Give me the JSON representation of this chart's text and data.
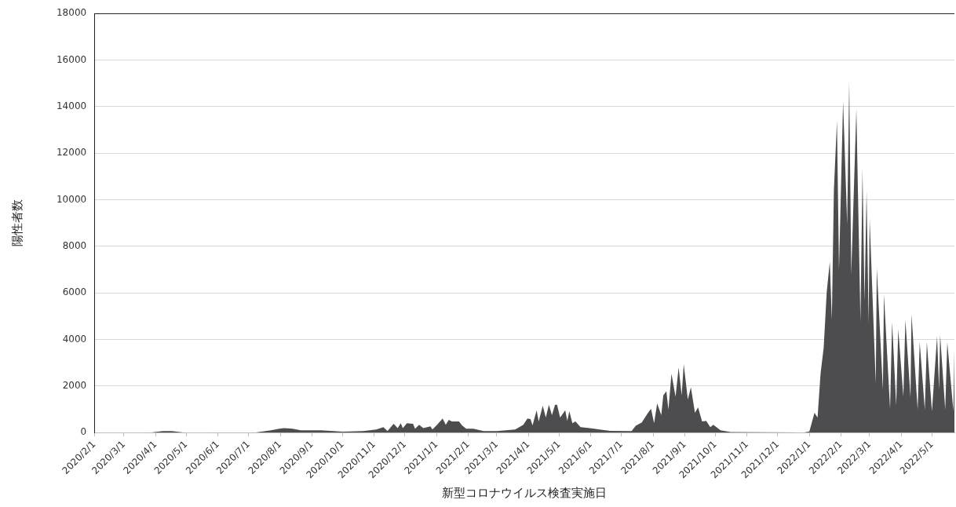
{
  "chart_data": {
    "type": "area",
    "xlabel": "新型コロナウイルス検査実施日",
    "ylabel": "陽性者数",
    "series": [
      {
        "color": "#4d4d4f",
        "x": [
          "2020-02-01",
          "2020-03-20",
          "2020-03-28",
          "2020-04-08",
          "2020-04-17",
          "2020-04-28",
          "2020-05-05",
          "2020-07-08",
          "2020-07-23",
          "2020-07-31",
          "2020-08-05",
          "2020-08-13",
          "2020-08-21",
          "2020-09-10",
          "2020-10-01",
          "2020-10-21",
          "2020-11-03",
          "2020-11-10",
          "2020-11-14",
          "2020-11-20",
          "2020-11-24",
          "2020-11-27",
          "2020-11-29",
          "2020-12-03",
          "2020-12-09",
          "2020-12-11",
          "2020-12-15",
          "2020-12-19",
          "2020-12-26",
          "2020-12-28",
          "2021-01-01",
          "2021-01-07",
          "2021-01-10",
          "2021-01-13",
          "2021-01-16",
          "2021-01-23",
          "2021-01-26",
          "2021-01-30",
          "2021-02-06",
          "2021-02-16",
          "2021-03-01",
          "2021-03-19",
          "2021-03-27",
          "2021-03-31",
          "2021-04-03",
          "2021-04-05",
          "2021-04-09",
          "2021-04-11",
          "2021-04-15",
          "2021-04-18",
          "2021-04-21",
          "2021-04-24",
          "2021-04-27",
          "2021-04-29",
          "2021-05-02",
          "2021-05-07",
          "2021-05-09",
          "2021-05-11",
          "2021-05-14",
          "2021-05-17",
          "2021-05-22",
          "2021-05-31",
          "2021-06-07",
          "2021-06-20",
          "2021-07-11",
          "2021-07-15",
          "2021-07-21",
          "2021-07-27",
          "2021-07-30",
          "2021-08-02",
          "2021-08-05",
          "2021-08-09",
          "2021-08-11",
          "2021-08-14",
          "2021-08-16",
          "2021-08-19",
          "2021-08-23",
          "2021-08-26",
          "2021-08-29",
          "2021-08-31",
          "2021-09-04",
          "2021-09-07",
          "2021-09-11",
          "2021-09-14",
          "2021-09-18",
          "2021-09-22",
          "2021-09-26",
          "2021-09-29",
          "2021-10-06",
          "2021-10-16",
          "2021-12-27",
          "2022-01-01",
          "2022-01-06",
          "2022-01-09",
          "2022-01-12",
          "2022-01-15",
          "2022-01-18",
          "2022-01-21",
          "2022-01-23",
          "2022-01-25",
          "2022-01-28",
          "2022-01-30",
          "2022-02-03",
          "2022-02-07",
          "2022-02-09",
          "2022-02-11",
          "2022-02-16",
          "2022-02-20",
          "2022-02-22",
          "2022-02-24",
          "2022-02-26",
          "2022-02-28",
          "2022-03-01",
          "2022-03-07",
          "2022-03-08",
          "2022-03-14",
          "2022-03-15",
          "2022-03-21",
          "2022-03-23",
          "2022-03-27",
          "2022-03-29",
          "2022-04-03",
          "2022-04-05",
          "2022-04-10",
          "2022-04-11",
          "2022-04-17",
          "2022-04-19",
          "2022-04-24",
          "2022-04-26",
          "2022-05-01",
          "2022-05-06",
          "2022-05-08",
          "2022-05-09",
          "2022-05-14",
          "2022-05-16",
          "2022-05-22",
          "2022-05-23"
        ],
        "values": [
          0,
          0,
          10,
          70,
          70,
          10,
          0,
          10,
          100,
          170,
          200,
          170,
          100,
          100,
          40,
          70,
          140,
          240,
          70,
          380,
          200,
          410,
          200,
          410,
          380,
          170,
          340,
          200,
          270,
          140,
          310,
          610,
          340,
          550,
          480,
          480,
          310,
          170,
          170,
          70,
          70,
          140,
          340,
          610,
          580,
          310,
          960,
          480,
          1160,
          650,
          1200,
          750,
          1200,
          1200,
          650,
          960,
          510,
          920,
          410,
          480,
          240,
          200,
          150,
          80,
          70,
          300,
          440,
          850,
          1020,
          410,
          1260,
          750,
          1600,
          1780,
          990,
          2530,
          1540,
          2800,
          1600,
          2940,
          1430,
          1950,
          850,
          1090,
          480,
          510,
          240,
          340,
          100,
          30,
          10,
          50,
          850,
          650,
          2560,
          3650,
          6050,
          7340,
          4850,
          10420,
          13390,
          7000,
          14240,
          8950,
          15100,
          6800,
          13900,
          4750,
          11340,
          5640,
          10380,
          4680,
          9190,
          2120,
          7070,
          1840,
          5940,
          1020,
          4750,
          1160,
          4440,
          1540,
          4850,
          1500,
          5090,
          990,
          3890,
          990,
          3890,
          920,
          4130,
          1840,
          4200,
          990,
          3890,
          920,
          3550
        ]
      }
    ],
    "xlim": [
      "2020-02-01",
      "2022-05-23"
    ],
    "xticks": [
      {
        "value": "2020-02-01",
        "label": "2020/2/1"
      },
      {
        "value": "2020-03-01",
        "label": "2020/3/1"
      },
      {
        "value": "2020-04-01",
        "label": "2020/4/1"
      },
      {
        "value": "2020-05-01",
        "label": "2020/5/1"
      },
      {
        "value": "2020-06-01",
        "label": "2020/6/1"
      },
      {
        "value": "2020-07-01",
        "label": "2020/7/1"
      },
      {
        "value": "2020-08-01",
        "label": "2020/8/1"
      },
      {
        "value": "2020-09-01",
        "label": "2020/9/1"
      },
      {
        "value": "2020-10-01",
        "label": "2020/10/1"
      },
      {
        "value": "2020-11-01",
        "label": "2020/11/1"
      },
      {
        "value": "2020-12-01",
        "label": "2020/12/1"
      },
      {
        "value": "2021-01-01",
        "label": "2021/1/1"
      },
      {
        "value": "2021-02-01",
        "label": "2021/2/1"
      },
      {
        "value": "2021-03-01",
        "label": "2021/3/1"
      },
      {
        "value": "2021-04-01",
        "label": "2021/4/1"
      },
      {
        "value": "2021-05-01",
        "label": "2021/5/1"
      },
      {
        "value": "2021-06-01",
        "label": "2021/6/1"
      },
      {
        "value": "2021-07-01",
        "label": "2021/7/1"
      },
      {
        "value": "2021-08-01",
        "label": "2021/8/1"
      },
      {
        "value": "2021-09-01",
        "label": "2021/9/1"
      },
      {
        "value": "2021-10-01",
        "label": "2021/10/1"
      },
      {
        "value": "2021-11-01",
        "label": "2021/11/1"
      },
      {
        "value": "2021-12-01",
        "label": "2021/12/1"
      },
      {
        "value": "2022-01-01",
        "label": "2022/1/1"
      },
      {
        "value": "2022-02-01",
        "label": "2022/2/1"
      },
      {
        "value": "2022-03-01",
        "label": "2022/3/1"
      },
      {
        "value": "2022-04-01",
        "label": "2022/4/1"
      },
      {
        "value": "2022-05-01",
        "label": "2022/5/1"
      }
    ],
    "ylim": [
      0,
      18000
    ],
    "yticks": [
      0,
      2000,
      4000,
      6000,
      8000,
      10000,
      12000,
      14000,
      16000,
      18000
    ],
    "grid": "y",
    "legend": false
  }
}
